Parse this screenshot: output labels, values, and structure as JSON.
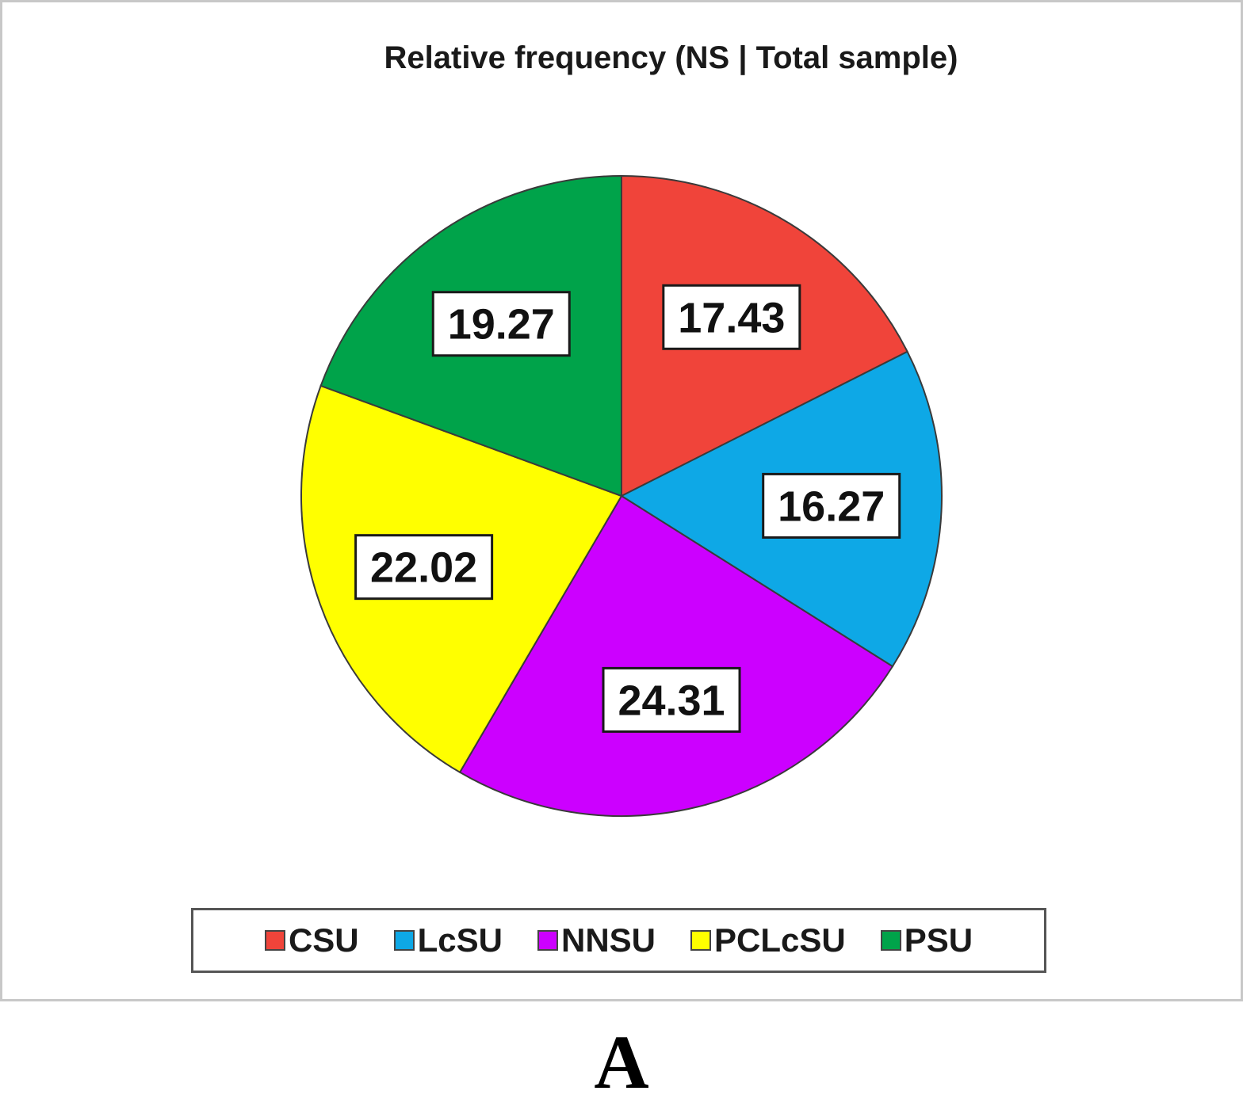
{
  "panel_label": "A",
  "chart_data": {
    "type": "pie",
    "title": "Relative frequency (NS | Total sample)",
    "slices": [
      {
        "name": "CSU",
        "value": 17.43,
        "label": "17.43",
        "color": "#f0443a"
      },
      {
        "name": "LcSU",
        "value": 16.27,
        "label": "16.27",
        "color": "#0ea8e6"
      },
      {
        "name": "NNSU",
        "value": 24.31,
        "label": "24.31",
        "color": "#cc00ff"
      },
      {
        "name": "PCLcSU",
        "value": 22.02,
        "label": "22.02",
        "color": "#ffff00"
      },
      {
        "name": "PSU",
        "value": 19.27,
        "label": "19.27",
        "color": "#00a34a"
      }
    ],
    "start_angle": "12 o'clock",
    "direction": "clockwise",
    "legend_position": "bottom"
  }
}
